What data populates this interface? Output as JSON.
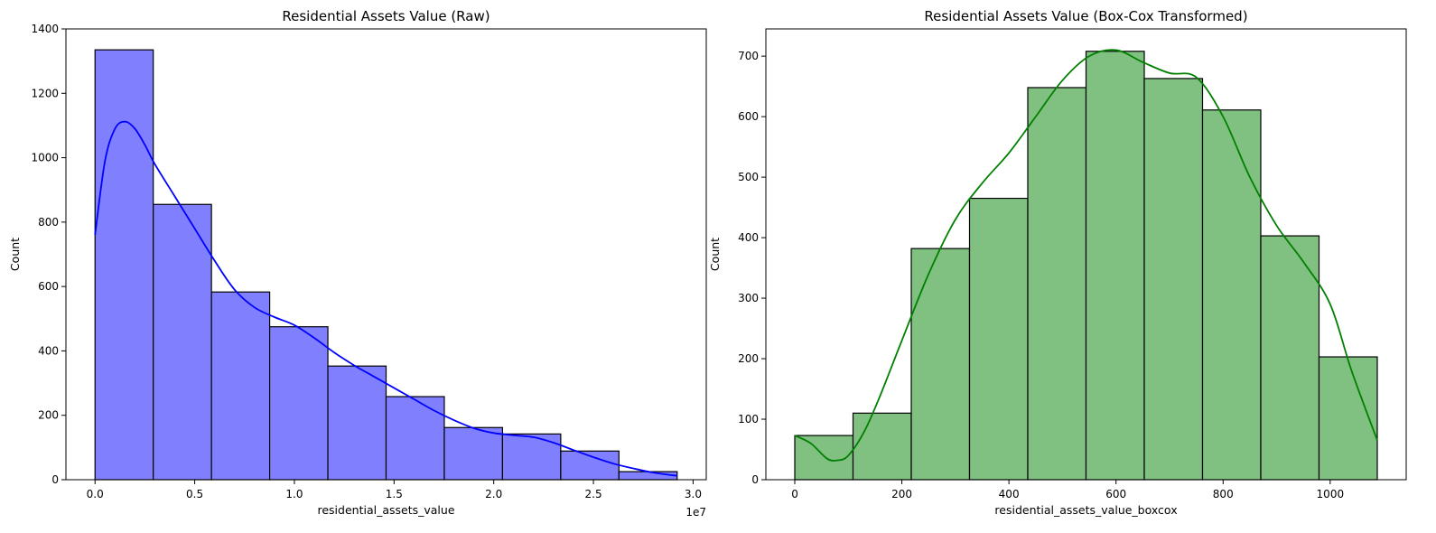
{
  "chart_data": [
    {
      "type": "histogram",
      "title": "Residential Assets Value (Raw)",
      "xlabel": "residential_assets_value",
      "ylabel": "Count",
      "x_offset_label": "1e7",
      "xlim": [
        -0.146,
        3.066
      ],
      "ylim": [
        0,
        1400
      ],
      "x_ticks": [
        0,
        0.5,
        1.0,
        1.5,
        2.0,
        2.5,
        3.0
      ],
      "x_tick_labels": [
        "0.0",
        "0.5",
        "1.0",
        "1.5",
        "2.0",
        "2.5",
        "3.0"
      ],
      "y_ticks": [
        0,
        200,
        400,
        600,
        800,
        1000,
        1200,
        1400
      ],
      "y_tick_labels": [
        "0",
        "200",
        "400",
        "600",
        "800",
        "1000",
        "1200",
        "1400"
      ],
      "bin_edges": [
        0,
        0.292,
        0.584,
        0.876,
        1.168,
        1.46,
        1.752,
        2.044,
        2.336,
        2.628,
        2.92
      ],
      "counts": [
        1335,
        855,
        583,
        475,
        353,
        258,
        162,
        142,
        89,
        25
      ],
      "bar_color": "#8080ff",
      "kde_color": "#0000ff",
      "kde": {
        "x": [
          0,
          0.05,
          0.1,
          0.15,
          0.2,
          0.25,
          0.3,
          0.4,
          0.5,
          0.6,
          0.7,
          0.8,
          0.9,
          1.0,
          1.1,
          1.2,
          1.3,
          1.4,
          1.5,
          1.6,
          1.7,
          1.8,
          1.9,
          2.0,
          2.1,
          2.2,
          2.3,
          2.4,
          2.5,
          2.6,
          2.7,
          2.8,
          2.92
        ],
        "y": [
          760,
          990,
          1090,
          1112,
          1090,
          1040,
          980,
          880,
          780,
          680,
          590,
          535,
          505,
          480,
          440,
          395,
          355,
          320,
          285,
          250,
          215,
          185,
          160,
          145,
          138,
          132,
          115,
          92,
          70,
          50,
          35,
          22,
          12
        ]
      }
    },
    {
      "type": "histogram",
      "title": "Residential Assets Value (Box-Cox Transformed)",
      "xlabel": "residential_assets_value_boxcox",
      "ylabel": "Count",
      "xlim": [
        -54,
        1142
      ],
      "ylim": [
        0,
        745
      ],
      "x_ticks": [
        0,
        200,
        400,
        600,
        800,
        1000
      ],
      "x_tick_labels": [
        "0",
        "200",
        "400",
        "600",
        "800",
        "1000"
      ],
      "y_ticks": [
        0,
        100,
        200,
        300,
        400,
        500,
        600,
        700
      ],
      "y_tick_labels": [
        "0",
        "100",
        "200",
        "300",
        "400",
        "500",
        "600",
        "700"
      ],
      "bin_edges": [
        0,
        108.8,
        217.6,
        326.4,
        435.2,
        544,
        652.8,
        761.6,
        870.4,
        979.2,
        1088
      ],
      "counts": [
        73,
        110,
        382,
        465,
        648,
        708,
        663,
        611,
        403,
        203
      ],
      "bar_color": "#80c080",
      "kde_color": "#008000",
      "kde": {
        "x": [
          0,
          30,
          60,
          80,
          100,
          130,
          160,
          200,
          250,
          300,
          350,
          400,
          450,
          500,
          550,
          600,
          650,
          700,
          750,
          800,
          850,
          900,
          950,
          1000,
          1040,
          1088
        ],
        "y": [
          73,
          60,
          35,
          32,
          40,
          80,
          140,
          230,
          340,
          430,
          490,
          540,
          600,
          660,
          700,
          710,
          690,
          672,
          665,
          600,
          500,
          420,
          360,
          290,
          180,
          65
        ]
      }
    }
  ]
}
